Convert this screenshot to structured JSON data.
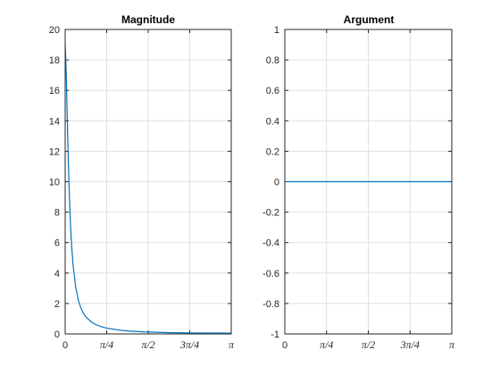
{
  "chart_data": [
    {
      "type": "line",
      "title": "Magnitude",
      "xlim": [
        0,
        3.14159
      ],
      "ylim": [
        0,
        20
      ],
      "xticks": [
        {
          "value": 0,
          "label": "0"
        },
        {
          "value": 0.785398,
          "label": "π/4"
        },
        {
          "value": 1.570796,
          "label": "π/2"
        },
        {
          "value": 2.356194,
          "label": "3π/4"
        },
        {
          "value": 3.14159,
          "label": "π"
        }
      ],
      "yticks": [
        {
          "value": 0,
          "label": "0"
        },
        {
          "value": 2,
          "label": "2"
        },
        {
          "value": 4,
          "label": "4"
        },
        {
          "value": 6,
          "label": "6"
        },
        {
          "value": 8,
          "label": "8"
        },
        {
          "value": 10,
          "label": "10"
        },
        {
          "value": 12,
          "label": "12"
        },
        {
          "value": 14,
          "label": "14"
        },
        {
          "value": 16,
          "label": "16"
        },
        {
          "value": 18,
          "label": "18"
        },
        {
          "value": 20,
          "label": "20"
        }
      ],
      "grid": true,
      "series": [
        {
          "x": [
            0,
            0.02,
            0.04,
            0.06,
            0.08,
            0.1,
            0.12,
            0.15,
            0.2,
            0.25,
            0.3,
            0.35,
            0.4,
            0.5,
            0.6,
            0.7,
            0.8,
            1.0,
            1.2,
            1.5,
            2.0,
            2.5,
            3.14159
          ],
          "y": [
            19.0,
            17.1,
            14.1,
            11.3,
            9.0,
            7.2,
            5.9,
            4.5,
            3.05,
            2.2,
            1.68,
            1.33,
            1.08,
            0.77,
            0.58,
            0.46,
            0.37,
            0.26,
            0.19,
            0.13,
            0.08,
            0.06,
            0.05
          ],
          "color": "#0072bd"
        }
      ]
    },
    {
      "type": "line",
      "title": "Argument",
      "xlim": [
        0,
        3.14159
      ],
      "ylim": [
        -1,
        1
      ],
      "xticks": [
        {
          "value": 0,
          "label": "0"
        },
        {
          "value": 0.785398,
          "label": "π/4"
        },
        {
          "value": 1.570796,
          "label": "π/2"
        },
        {
          "value": 2.356194,
          "label": "3π/4"
        },
        {
          "value": 3.14159,
          "label": "π"
        }
      ],
      "yticks": [
        {
          "value": -1,
          "label": "-1"
        },
        {
          "value": -0.8,
          "label": "-0.8"
        },
        {
          "value": -0.6,
          "label": "-0.6"
        },
        {
          "value": -0.4,
          "label": "-0.4"
        },
        {
          "value": -0.2,
          "label": "-0.2"
        },
        {
          "value": 0,
          "label": "0"
        },
        {
          "value": 0.2,
          "label": "0.2"
        },
        {
          "value": 0.4,
          "label": "0.4"
        },
        {
          "value": 0.6,
          "label": "0.6"
        },
        {
          "value": 0.8,
          "label": "0.8"
        },
        {
          "value": 1,
          "label": "1"
        }
      ],
      "grid": true,
      "series": [
        {
          "x": [
            0,
            3.14159
          ],
          "y": [
            0,
            0
          ],
          "color": "#0072bd"
        }
      ]
    }
  ]
}
